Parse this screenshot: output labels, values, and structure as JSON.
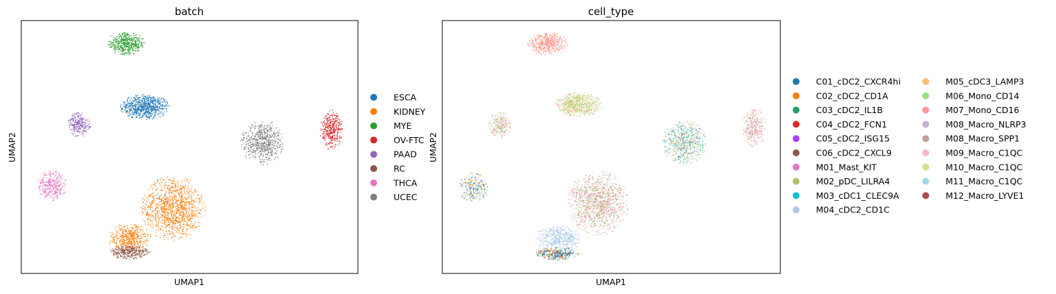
{
  "chart_data": [
    {
      "type": "scatter",
      "title": "batch",
      "xlabel": "UMAP1",
      "ylabel": "UMAP2",
      "xlim": [
        0,
        100
      ],
      "ylim": [
        0,
        100
      ],
      "grid": false,
      "legend_position": "right",
      "series": [
        {
          "name": "ESCA",
          "color": "#1f77b4",
          "clusters": [
            {
              "x": 36.5,
              "y": 66,
              "rx": 7.5,
              "ry": 5,
              "n": 700
            }
          ]
        },
        {
          "name": "KIDNEY",
          "color": "#ff7f0e",
          "clusters": [
            {
              "x": 45,
              "y": 26,
              "rx": 9.5,
              "ry": 13,
              "n": 1100
            },
            {
              "x": 32,
              "y": 14,
              "rx": 6.5,
              "ry": 6,
              "n": 450
            }
          ]
        },
        {
          "name": "MYE",
          "color": "#2ca02c",
          "clusters": [
            {
              "x": 31,
              "y": 91,
              "rx": 6,
              "ry": 4.5,
              "n": 450
            }
          ]
        },
        {
          "name": "OV-FTC",
          "color": "#d62728",
          "clusters": [
            {
              "x": 92,
              "y": 57,
              "rx": 3.5,
              "ry": 8,
              "n": 350
            }
          ]
        },
        {
          "name": "PAAD",
          "color": "#9467bd",
          "clusters": [
            {
              "x": 17,
              "y": 59,
              "rx": 3.5,
              "ry": 5,
              "n": 250
            }
          ]
        },
        {
          "name": "RC",
          "color": "#8c564b",
          "clusters": [
            {
              "x": 32,
              "y": 8.5,
              "rx": 6.5,
              "ry": 2.8,
              "n": 300
            }
          ]
        },
        {
          "name": "THCA",
          "color": "#e377c2",
          "clusters": [
            {
              "x": 9,
              "y": 35,
              "rx": 4.5,
              "ry": 6,
              "n": 300
            }
          ]
        },
        {
          "name": "UCEC",
          "color": "#7f7f7f",
          "clusters": [
            {
              "x": 71.5,
              "y": 52,
              "rx": 6.5,
              "ry": 9,
              "n": 600
            }
          ]
        }
      ]
    },
    {
      "type": "scatter",
      "title": "cell_type",
      "xlabel": "UMAP1",
      "ylabel": "UMAP2",
      "xlim": [
        0,
        100
      ],
      "ylim": [
        0,
        100
      ],
      "grid": false,
      "legend_position": "right",
      "categories": [
        "C01_cDC2_CXCR4hi",
        "C02_cDC2_CD1A",
        "C03_cDC2_IL1B",
        "C04_cDC2_FCN1",
        "C05_cDC2_ISG15",
        "C06_cDC2_CXCL9",
        "M01_Mast_KIT",
        "M02_pDC_LILRA4",
        "M03_cDC1_CLEC9A",
        "M04_cDC2_CD1C",
        "M05_cDC3_LAMP3",
        "M06_Mono_CD14",
        "M07_Mono_CD16",
        "M08_Macro_NLRP3",
        "M08_Macro_SPP1",
        "M09_Macro_C1QC",
        "M10_Macro_C1QC",
        "M11_Macro_C1QC",
        "M12_Macro_LYVE1"
      ],
      "colors": [
        "#1f77b4",
        "#ff7f0e",
        "#279e68",
        "#d62728",
        "#aa40fc",
        "#8c564b",
        "#e377c2",
        "#b5bd61",
        "#17becf",
        "#aec7e8",
        "#ffbb78",
        "#98df8a",
        "#ff9896",
        "#c5b0d5",
        "#c49c94",
        "#f7b6d2",
        "#dbdb8d",
        "#9edae5",
        "#ad494a"
      ],
      "clusters": [
        {
          "x": 31,
          "y": 91,
          "rx": 6,
          "ry": 4.5,
          "n": 450,
          "mix": [
            [
              12,
              8
            ],
            [
              1,
              1
            ],
            [
              15,
              1
            ]
          ]
        },
        {
          "x": 40,
          "y": 67,
          "rx": 7,
          "ry": 5,
          "n": 650,
          "mix": [
            [
              11,
              4
            ],
            [
              10,
              3
            ],
            [
              16,
              3
            ],
            [
              7,
              1
            ],
            [
              12,
              1
            ]
          ]
        },
        {
          "x": 17,
          "y": 59,
          "rx": 3.5,
          "ry": 5,
          "n": 250,
          "mix": [
            [
              15,
              3
            ],
            [
              11,
              2
            ],
            [
              12,
              1
            ],
            [
              7,
              1
            ]
          ]
        },
        {
          "x": 71.5,
          "y": 52,
          "rx": 6.5,
          "ry": 9,
          "n": 650,
          "mix": [
            [
              11,
              3
            ],
            [
              14,
              2
            ],
            [
              0,
              1
            ],
            [
              16,
              1
            ],
            [
              17,
              1
            ],
            [
              13,
              1
            ],
            [
              8,
              1
            ]
          ]
        },
        {
          "x": 92,
          "y": 58,
          "rx": 3.5,
          "ry": 8,
          "n": 350,
          "mix": [
            [
              15,
              3
            ],
            [
              14,
              3
            ],
            [
              16,
              1
            ]
          ]
        },
        {
          "x": 9,
          "y": 34,
          "rx": 4.5,
          "ry": 6,
          "n": 300,
          "mix": [
            [
              0,
              2
            ],
            [
              16,
              2
            ],
            [
              17,
              1
            ],
            [
              9,
              1
            ],
            [
              1,
              1
            ]
          ]
        },
        {
          "x": 46,
          "y": 28,
          "rx": 9,
          "ry": 13,
          "n": 1100,
          "mix": [
            [
              14,
              5
            ],
            [
              12,
              3
            ],
            [
              11,
              2
            ],
            [
              15,
              1
            ],
            [
              16,
              1
            ]
          ]
        },
        {
          "x": 34,
          "y": 14,
          "rx": 7,
          "ry": 5.5,
          "n": 450,
          "mix": [
            [
              9,
              10
            ],
            [
              17,
              1
            ]
          ]
        },
        {
          "x": 34,
          "y": 8,
          "rx": 6.5,
          "ry": 2.5,
          "n": 320,
          "mix": [
            [
              0,
              4
            ],
            [
              1,
              2
            ],
            [
              2,
              1
            ],
            [
              5,
              1
            ],
            [
              9,
              1
            ]
          ]
        }
      ]
    }
  ]
}
